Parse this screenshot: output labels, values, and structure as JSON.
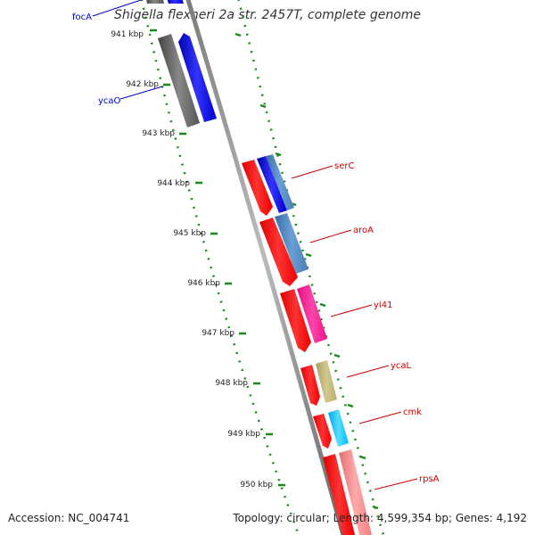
{
  "title": "Shigella flexneri 2a str. 2457T, complete genome",
  "footer": {
    "accession": "Accession: NC_004741",
    "topology": "Topology: circular; Length: 4,599,354 bp; Genes: 4,192"
  },
  "ruler_ticks": [
    "941 kbp",
    "942 kbp",
    "943 kbp",
    "944 kbp",
    "945 kbp",
    "946 kbp",
    "947 kbp",
    "948 kbp",
    "949 kbp",
    "950 kbp"
  ],
  "colors": {
    "backbone": "#888888",
    "dots": "#1a8a1a",
    "forward_strand": "#ff0000",
    "reverse_label_line": "#0000cc",
    "forward_label_line": "#cc0000"
  },
  "left_labels": [
    {
      "name": "focA",
      "color": "#0000cc"
    },
    {
      "name": "ycaO",
      "color": "#0000cc"
    }
  ],
  "right_labels": [
    {
      "name": "serC",
      "color": "#cc0000"
    },
    {
      "name": "aroA",
      "color": "#cc0000"
    },
    {
      "name": "yi41",
      "color": "#cc0000"
    },
    {
      "name": "ycaL",
      "color": "#cc0000"
    },
    {
      "name": "cmk",
      "color": "#cc0000"
    },
    {
      "name": "rpsA",
      "color": "#cc0000"
    }
  ],
  "feature_colors": {
    "gray": "#5a5a5a",
    "blue": "#0000ee",
    "red": "#ff0000",
    "steelblue": "#4a7fb5",
    "pink": "#ff1493",
    "khaki": "#b8b070",
    "cyan": "#00bfff",
    "salmon": "#f08080"
  }
}
